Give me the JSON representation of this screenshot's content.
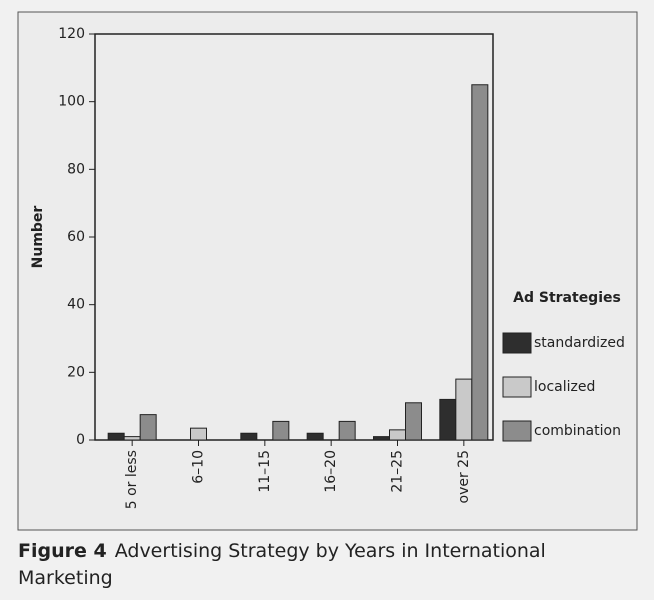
{
  "chart_data": {
    "type": "bar",
    "y_label": "Number",
    "categories": [
      "5 or less",
      "6–10",
      "11–15",
      "16–20",
      "21–25",
      "over 25"
    ],
    "series": [
      {
        "name": "standardized",
        "color": "#2e2e2e",
        "values": [
          2,
          0,
          2,
          2,
          1,
          12
        ]
      },
      {
        "name": "localized",
        "color": "#c9c9c9",
        "values": [
          1,
          3.5,
          0,
          0,
          3,
          18
        ]
      },
      {
        "name": "combination",
        "color": "#8c8c8c",
        "values": [
          7.5,
          0,
          5.5,
          5.5,
          11,
          105
        ]
      }
    ],
    "legend_title": "Ad Strategies",
    "legend_position": "right",
    "ylim": [
      0,
      120
    ],
    "yticks": [
      0,
      20,
      40,
      60,
      80,
      100,
      120
    ],
    "grid": false,
    "figure_label": "Figure 4",
    "title": "Advertising Strategy by Years in International Marketing"
  }
}
